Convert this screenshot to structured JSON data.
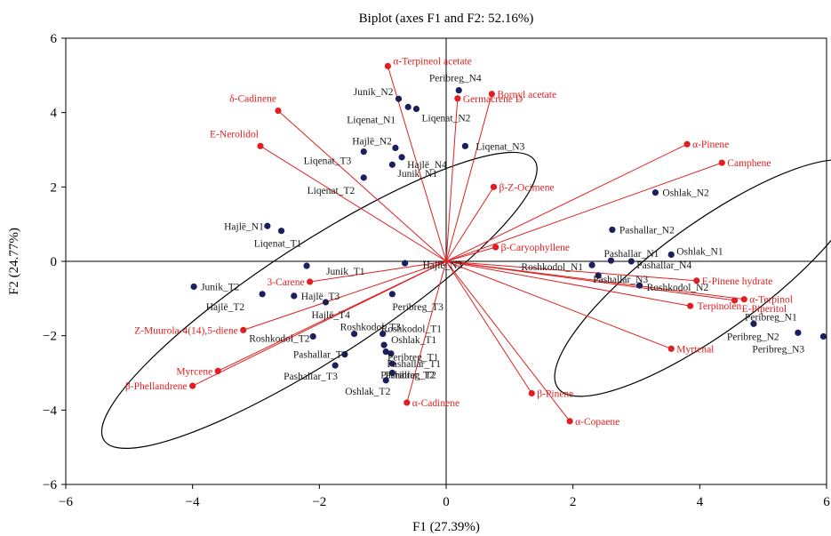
{
  "chart_data": {
    "type": "scatter",
    "title": "Biplot (axes F1 and F2: 52.16%)",
    "xlabel": "F1 (27.39%)",
    "ylabel": "F2 (24.77%)",
    "xlim": [
      -6,
      6
    ],
    "ylim": [
      -6,
      6
    ],
    "xticks": [
      -6,
      -4,
      -2,
      0,
      2,
      4,
      6
    ],
    "yticks": [
      -6,
      -4,
      -2,
      0,
      2,
      4,
      6
    ],
    "colors": {
      "observations": "#1b1f5c",
      "variables": "#e02020",
      "ellipse": "#000000",
      "axes": "#000000"
    },
    "observations": [
      {
        "name": "Junik_N2",
        "x": -0.75,
        "y": 4.37
      },
      {
        "name": "Liqenat_N1",
        "x": -0.6,
        "y": 4.15
      },
      {
        "name": "Liqenat_N2",
        "x": -0.47,
        "y": 4.1
      },
      {
        "name": "Peribreg_N4",
        "x": 0.2,
        "y": 4.6
      },
      {
        "name": "Liqenat_N3",
        "x": 0.3,
        "y": 3.1
      },
      {
        "name": "Hajlë_N2",
        "x": -0.8,
        "y": 3.05
      },
      {
        "name": "Hajlë_N4",
        "x": -0.7,
        "y": 2.8
      },
      {
        "name": "Junik_N1",
        "x": -0.85,
        "y": 2.6
      },
      {
        "name": "Liqenat_T3",
        "x": -1.3,
        "y": 2.95
      },
      {
        "name": "Liqenat_T2",
        "x": -1.3,
        "y": 2.25
      },
      {
        "name": "Hajlë_N1",
        "x": -2.82,
        "y": 0.95
      },
      {
        "name": "Liqenat_T1",
        "x": -2.6,
        "y": 0.82
      },
      {
        "name": "Junik_T1",
        "x": -2.2,
        "y": -0.12
      },
      {
        "name": "Hajlë_N3",
        "x": -0.65,
        "y": -0.05
      },
      {
        "name": "Junik_T2",
        "x": -3.98,
        "y": -0.68
      },
      {
        "name": "Hajlë_T2",
        "x": -2.9,
        "y": -0.88
      },
      {
        "name": "Hajlë_T3",
        "x": -2.4,
        "y": -0.93
      },
      {
        "name": "Hajlë_T4",
        "x": -1.9,
        "y": -1.1
      },
      {
        "name": "Peribreg_T3",
        "x": -0.85,
        "y": -0.88
      },
      {
        "name": "Roshkodol_T3",
        "x": -1.45,
        "y": -1.95
      },
      {
        "name": "Roshkodol_T2",
        "x": -2.1,
        "y": -2.02
      },
      {
        "name": "Roshkodol_T1",
        "x": -1.0,
        "y": -1.95
      },
      {
        "name": "Oshlak_T1",
        "x": -0.98,
        "y": -2.25
      },
      {
        "name": "Peribreg_T1",
        "x": -0.87,
        "y": -2.48
      },
      {
        "name": "Pashallar_T1",
        "x": -0.85,
        "y": -2.75
      },
      {
        "name": "Pashallar_T2",
        "x": -0.95,
        "y": -2.43
      },
      {
        "name": "Pashallar_T4",
        "x": -1.6,
        "y": -2.5
      },
      {
        "name": "Pashallar_T3",
        "x": -1.75,
        "y": -2.8
      },
      {
        "name": "Oshlak_T2",
        "x": -0.95,
        "y": -3.2
      },
      {
        "name": "Peribreg_T2",
        "x": -0.85,
        "y": -3.0
      },
      {
        "name": "Oshlak_N2",
        "x": 3.3,
        "y": 1.85
      },
      {
        "name": "Pashallar_N2",
        "x": 2.62,
        "y": 0.85
      },
      {
        "name": "Pashallar_N1",
        "x": 2.6,
        "y": 0.02
      },
      {
        "name": "Oshlak_N1",
        "x": 3.55,
        "y": 0.18
      },
      {
        "name": "Pashallar_N4",
        "x": 2.92,
        "y": 0.0
      },
      {
        "name": "Roshkodol_N1",
        "x": 2.3,
        "y": -0.1
      },
      {
        "name": "Pashallar_N3",
        "x": 2.4,
        "y": -0.38
      },
      {
        "name": "Roshkodol_N2",
        "x": 3.05,
        "y": -0.65
      },
      {
        "name": "Peribreg_N1",
        "x": 4.85,
        "y": -1.68
      },
      {
        "name": "Peribreg_N2",
        "x": 5.55,
        "y": -1.92
      },
      {
        "name": "Peribreg_N3",
        "x": 5.95,
        "y": -2.02
      }
    ],
    "variables": [
      {
        "name": "α-Terpineol acetate",
        "x": -0.92,
        "y": 5.25
      },
      {
        "name": "Bornyl acetate",
        "x": 0.72,
        "y": 4.5
      },
      {
        "name": "Germacrene D",
        "x": 0.18,
        "y": 4.38
      },
      {
        "name": "δ-Cadinene",
        "x": -2.65,
        "y": 4.05
      },
      {
        "name": "E-Nerolidol",
        "x": -2.93,
        "y": 3.1
      },
      {
        "name": "α-Pinene",
        "x": 3.8,
        "y": 3.15
      },
      {
        "name": "Camphene",
        "x": 4.35,
        "y": 2.65
      },
      {
        "name": "β-Z-Ocimene",
        "x": 0.75,
        "y": 2.0
      },
      {
        "name": "β-Caryophyllene",
        "x": 0.78,
        "y": 0.38
      },
      {
        "name": "3-Carene",
        "x": -2.15,
        "y": -0.55
      },
      {
        "name": "E-Pinene hydrate",
        "x": 3.95,
        "y": -0.52
      },
      {
        "name": "α-Terpinol",
        "x": 4.7,
        "y": -1.02
      },
      {
        "name": "E-Piperitol",
        "x": 4.55,
        "y": -1.05
      },
      {
        "name": "Terpinolen",
        "x": 3.85,
        "y": -1.2
      },
      {
        "name": "Myrtenal",
        "x": 3.55,
        "y": -2.35
      },
      {
        "name": "Z-Muurola-4(14),5-diene",
        "x": -3.2,
        "y": -1.85
      },
      {
        "name": "Myrcene",
        "x": -3.6,
        "y": -2.95
      },
      {
        "name": "β-Phellandrene",
        "x": -4.0,
        "y": -3.35
      },
      {
        "name": "β-Pinene",
        "x": 1.35,
        "y": -3.55
      },
      {
        "name": "α-Cadinene",
        "x": -0.62,
        "y": -3.8
      },
      {
        "name": "α-Copaene",
        "x": 1.95,
        "y": -4.3
      }
    ],
    "ellipses": [
      {
        "cx": -2.0,
        "cy": -1.05,
        "rx": 4.05,
        "ry": 1.55,
        "angle_deg": -33
      },
      {
        "cx": 4.15,
        "cy": -0.45,
        "rx": 2.95,
        "ry": 1.45,
        "angle_deg": -36
      }
    ]
  }
}
